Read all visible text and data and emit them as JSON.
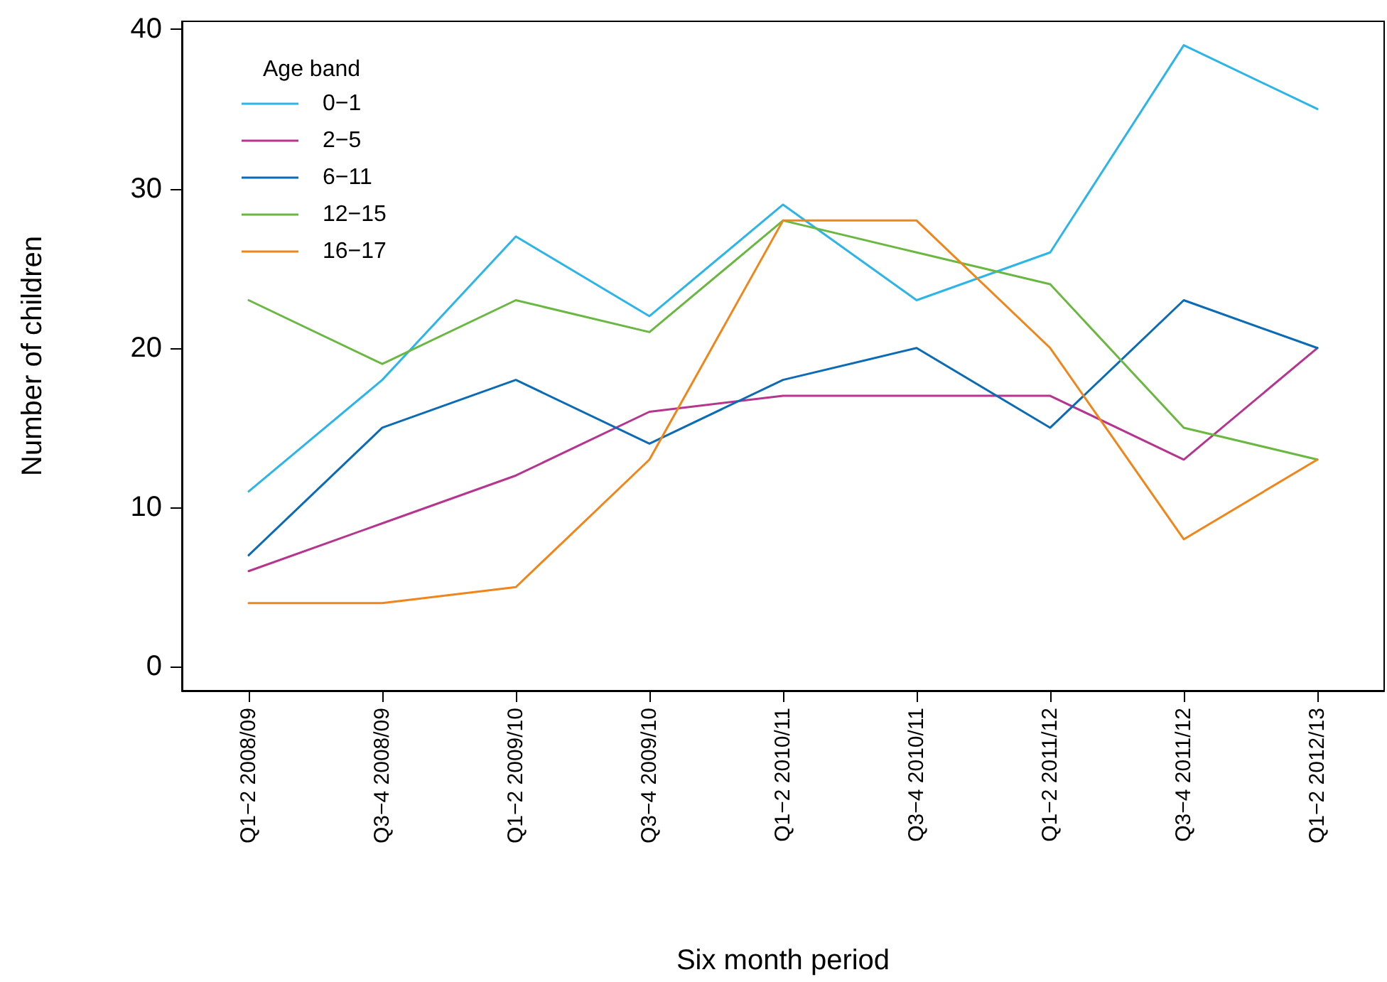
{
  "chart_data": {
    "type": "line",
    "xlabel": "Six month period",
    "ylabel": "Number of children",
    "legend_title": "Age band",
    "legend": "top left",
    "grid": false,
    "marker": "none",
    "line_style": "solid",
    "categories": [
      "Q1−2 2008/09",
      "Q3−4 2008/09",
      "Q1−2 2009/10",
      "Q3−4 2009/10",
      "Q1−2 2010/11",
      "Q3−4 2010/11",
      "Q1−2 2011/12",
      "Q3−4 2011/12",
      "Q1−2 2012/13"
    ],
    "ylim": [
      -1.5,
      40.5
    ],
    "yticks": [
      0,
      10,
      20,
      30,
      40
    ],
    "series": [
      {
        "name": "0−1",
        "color": "#2cb5e8",
        "values": [
          11,
          18,
          27,
          22,
          29,
          23,
          26,
          39,
          35
        ]
      },
      {
        "name": "2−5",
        "color": "#b5358f",
        "values": [
          6,
          9,
          12,
          16,
          17,
          17,
          17,
          13,
          20
        ]
      },
      {
        "name": "6−11",
        "color": "#0b6bb5",
        "values": [
          7,
          15,
          18,
          14,
          18,
          20,
          15,
          23,
          20
        ]
      },
      {
        "name": "12−15",
        "color": "#6ab842",
        "values": [
          23,
          19,
          23,
          21,
          28,
          26,
          24,
          15,
          13
        ]
      },
      {
        "name": "16−17",
        "color": "#f0861a",
        "values": [
          4,
          4,
          5,
          13,
          28,
          28,
          20,
          8,
          13
        ]
      }
    ]
  }
}
